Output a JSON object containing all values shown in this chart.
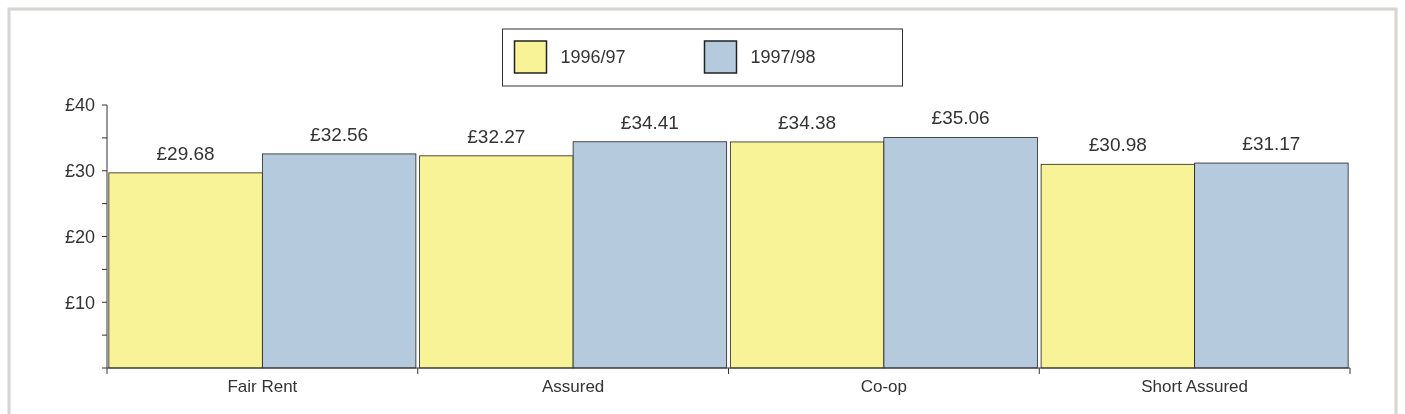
{
  "chart_data": {
    "type": "bar",
    "categories": [
      "Fair Rent",
      "Assured",
      "Co-op",
      "Short Assured"
    ],
    "series": [
      {
        "name": "1996/97",
        "color": "#f7f396",
        "values": [
          29.68,
          32.27,
          34.38,
          30.98
        ],
        "value_labels": [
          "£29.68",
          "£32.27",
          "£34.38",
          "£30.98"
        ]
      },
      {
        "name": "1997/98",
        "color": "#b5cadd",
        "values": [
          32.56,
          34.41,
          35.06,
          31.17
        ],
        "value_labels": [
          "£32.56",
          "£34.41",
          "£35.06",
          "£31.17"
        ]
      }
    ],
    "ylim": [
      0,
      40
    ],
    "yticks": [
      {
        "value": 0,
        "label": null
      },
      {
        "value": 5,
        "label": null
      },
      {
        "value": 10,
        "label": "£10"
      },
      {
        "value": 15,
        "label": null
      },
      {
        "value": 20,
        "label": "£20"
      },
      {
        "value": 25,
        "label": null
      },
      {
        "value": 30,
        "label": "£30"
      },
      {
        "value": 35,
        "label": null
      },
      {
        "value": 40,
        "label": "£40"
      }
    ],
    "grid": false,
    "legend": "top"
  }
}
